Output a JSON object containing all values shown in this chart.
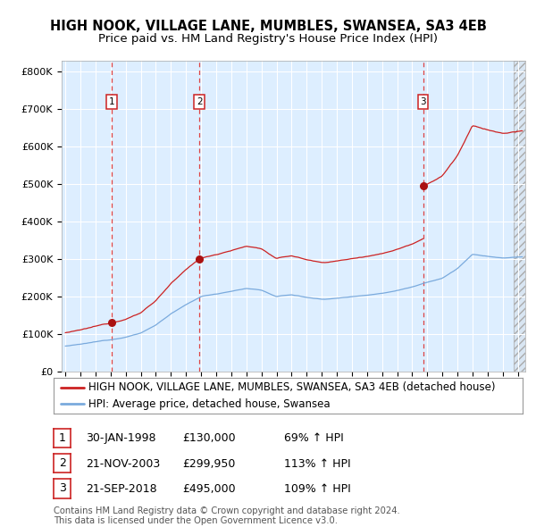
{
  "title": "HIGH NOOK, VILLAGE LANE, MUMBLES, SWANSEA, SA3 4EB",
  "subtitle": "Price paid vs. HM Land Registry's House Price Index (HPI)",
  "sales": [
    {
      "num": 1,
      "date": "30-JAN-1998",
      "price": 130000,
      "pct": "69%",
      "x_year": 1998.08
    },
    {
      "num": 2,
      "date": "21-NOV-2003",
      "price": 299950,
      "pct": "113%",
      "x_year": 2003.89
    },
    {
      "num": 3,
      "date": "21-SEP-2018",
      "price": 495000,
      "pct": "109%",
      "x_year": 2018.72
    }
  ],
  "ylabel_ticks": [
    0,
    100000,
    200000,
    300000,
    400000,
    500000,
    600000,
    700000,
    800000
  ],
  "ylabel_labels": [
    "£0",
    "£100K",
    "£200K",
    "£300K",
    "£400K",
    "£500K",
    "£600K",
    "£700K",
    "£800K"
  ],
  "ylim": [
    0,
    830000
  ],
  "xlim_start": 1994.75,
  "xlim_end": 2025.5,
  "hpi_line_color": "#7aaadd",
  "price_line_color": "#cc2222",
  "dot_color": "#aa1111",
  "dashed_line_color": "#dd4444",
  "background_color": "#ddeeff",
  "plot_bg_color": "#ddeeff",
  "legend_label_red": "HIGH NOOK, VILLAGE LANE, MUMBLES, SWANSEA, SA3 4EB (detached house)",
  "legend_label_blue": "HPI: Average price, detached house, Swansea",
  "footer_line1": "Contains HM Land Registry data © Crown copyright and database right 2024.",
  "footer_line2": "This data is licensed under the Open Government Licence v3.0.",
  "grid_color": "#ffffff",
  "title_fontsize": 10.5,
  "subtitle_fontsize": 9.5,
  "tick_fontsize": 8,
  "legend_fontsize": 8.5,
  "table_fontsize": 9
}
